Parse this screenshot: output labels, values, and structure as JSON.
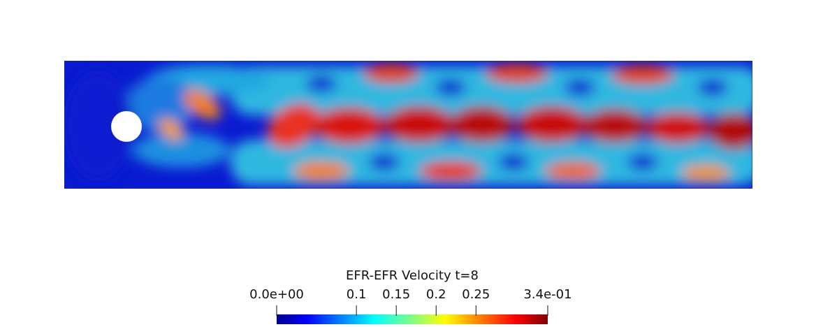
{
  "render": {
    "field_name": "EFR-EFR Velocity t=8",
    "colormap": "jet",
    "value_range": [
      0.0,
      0.34
    ],
    "obstacle": "circular cylinder",
    "background": "#ffffff"
  },
  "colorbar": {
    "title": "EFR-EFR Velocity t=8",
    "ticks": [
      {
        "label": "0.0e+00",
        "value": 0.0
      },
      {
        "label": "0.1",
        "value": 0.1
      },
      {
        "label": "0.15",
        "value": 0.15
      },
      {
        "label": "0.2",
        "value": 0.2
      },
      {
        "label": "0.25",
        "value": 0.25
      },
      {
        "label": "3.4e-01",
        "value": 0.34
      }
    ],
    "stops": [
      "#00008f",
      "#0000ff",
      "#0080ff",
      "#00ffff",
      "#80ff80",
      "#ffff00",
      "#ff8000",
      "#ff0000",
      "#800000"
    ]
  }
}
